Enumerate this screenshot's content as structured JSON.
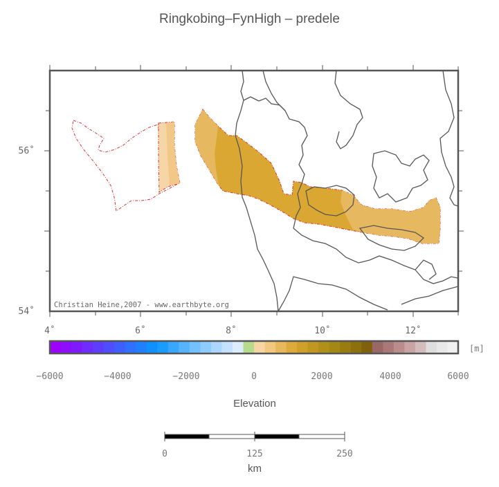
{
  "title": "Ringkobing–FynHigh – predele",
  "credit": "Christian Heine,2007 - www.earthbyte.org",
  "lon_axis": {
    "labels": [
      "4˚",
      "6˚",
      "8˚",
      "10˚",
      "12˚"
    ],
    "range": [
      4,
      13
    ]
  },
  "lat_axis": {
    "labels": [
      "56˚",
      "54˚"
    ],
    "range": [
      54,
      57
    ]
  },
  "colorbar": {
    "unit": "[m]",
    "title": "Elevation",
    "tick_labels": [
      "−6000",
      "−4000",
      "−2000",
      "0",
      "2000",
      "4000",
      "6000"
    ],
    "range": [
      -6000,
      6000
    ],
    "colors": [
      "#a000ff",
      "#8f0dff",
      "#7f1aff",
      "#6f2cff",
      "#5e3dff",
      "#4e4dff",
      "#3e5eff",
      "#2e70ff",
      "#1e80ff",
      "#0e90ff",
      "#1a9cff",
      "#38a8ff",
      "#56b4ff",
      "#72c0ff",
      "#8ecbff",
      "#aad6ff",
      "#c4e2ff",
      "#dcedff",
      "#b4dc8c",
      "#f8d6a4",
      "#f2c87e",
      "#e8b95c",
      "#ddab3c",
      "#cfa02a",
      "#c09820",
      "#b09018",
      "#a48814",
      "#987c10",
      "#8c700c",
      "#80600a",
      "#9a6666",
      "#aa7878",
      "#bb8c8c",
      "#c8a4a4",
      "#d4bcbc",
      "#dedede",
      "#e8e8e8",
      "#f0f0f0"
    ]
  },
  "scale_bar": {
    "labels": [
      "0",
      "125",
      "250"
    ],
    "unit": "km"
  },
  "legend_colors": {
    "frame": "#555555",
    "coast": "#555555",
    "outline": "#e03030",
    "fill_light": "#f6d6a6",
    "fill_mid": "#e6b860",
    "fill_dark": "#daa832"
  }
}
